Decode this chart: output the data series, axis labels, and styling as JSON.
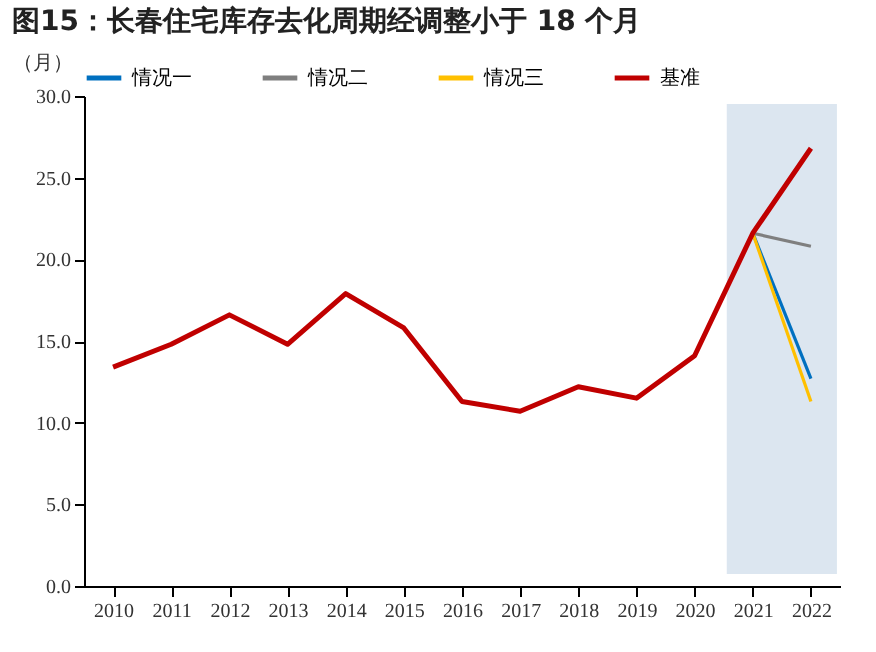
{
  "chart_data": {
    "type": "line",
    "title": "图15：长春住宅库存去化周期经调整小于 18 个月",
    "ylabel": "（月）",
    "categories": [
      "2010",
      "2011",
      "2012",
      "2013",
      "2014",
      "2015",
      "2016",
      "2017",
      "2018",
      "2019",
      "2020",
      "2021",
      "2022"
    ],
    "series": [
      {
        "name": "情况一",
        "color": "#0070c0",
        "values": [
          null,
          null,
          null,
          null,
          null,
          null,
          null,
          null,
          null,
          null,
          null,
          21.6,
          12.7
        ]
      },
      {
        "name": "情况二",
        "color": "#7f7f7f",
        "values": [
          null,
          null,
          null,
          null,
          null,
          null,
          null,
          null,
          null,
          null,
          null,
          21.6,
          20.8
        ]
      },
      {
        "name": "情况三",
        "color": "#ffc000",
        "values": [
          null,
          null,
          null,
          null,
          null,
          null,
          null,
          null,
          null,
          null,
          null,
          21.6,
          11.3
        ]
      },
      {
        "name": "基准",
        "color": "#c00000",
        "values": [
          13.4,
          14.8,
          16.6,
          14.8,
          17.9,
          15.8,
          11.3,
          10.7,
          12.2,
          11.5,
          14.1,
          21.6,
          26.8
        ]
      }
    ],
    "ylim": [
      0,
      30
    ],
    "yticks": [
      {
        "value": 0,
        "label": "0.0"
      },
      {
        "value": 5,
        "label": "5.0"
      },
      {
        "value": 10,
        "label": "10.0"
      },
      {
        "value": 15,
        "label": "15.0"
      },
      {
        "value": 20,
        "label": "20.0"
      },
      {
        "value": 25,
        "label": "25.0"
      },
      {
        "value": 30,
        "label": "30.0"
      }
    ],
    "bands": [
      {
        "axis": "x",
        "from": "2021",
        "to": "2022",
        "color": "#dce6f0"
      }
    ],
    "grid": false,
    "legend": "top"
  }
}
